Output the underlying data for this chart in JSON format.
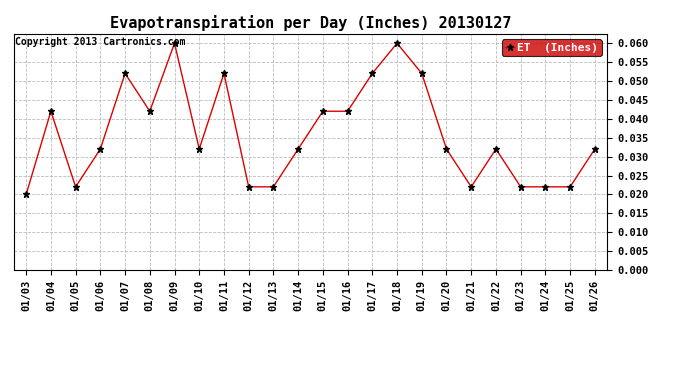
{
  "title": "Evapotranspiration per Day (Inches) 20130127",
  "copyright_text": "Copyright 2013 Cartronics.com",
  "legend_label": "ET  (Inches)",
  "x_labels": [
    "01/03",
    "01/04",
    "01/05",
    "01/06",
    "01/07",
    "01/08",
    "01/09",
    "01/10",
    "01/11",
    "01/12",
    "01/13",
    "01/14",
    "01/15",
    "01/16",
    "01/17",
    "01/18",
    "01/19",
    "01/20",
    "01/21",
    "01/22",
    "01/23",
    "01/24",
    "01/25",
    "01/26"
  ],
  "y_values": [
    0.02,
    0.042,
    0.022,
    0.032,
    0.052,
    0.042,
    0.06,
    0.032,
    0.052,
    0.022,
    0.022,
    0.032,
    0.042,
    0.042,
    0.052,
    0.06,
    0.052,
    0.032,
    0.022,
    0.032,
    0.022,
    0.022,
    0.022,
    0.032
  ],
  "ylim": [
    0.0,
    0.0625
  ],
  "yticks": [
    0.0,
    0.005,
    0.01,
    0.015,
    0.02,
    0.025,
    0.03,
    0.035,
    0.04,
    0.045,
    0.05,
    0.055,
    0.06
  ],
  "line_color": "#dd0000",
  "marker_color": "#000000",
  "background_color": "#ffffff",
  "legend_bg_color": "#cc0000",
  "legend_text_color": "#ffffff",
  "title_fontsize": 11,
  "copyright_fontsize": 7,
  "tick_fontsize": 7.5,
  "legend_fontsize": 8,
  "grid_color": "#bbbbbb",
  "grid_style": "--"
}
